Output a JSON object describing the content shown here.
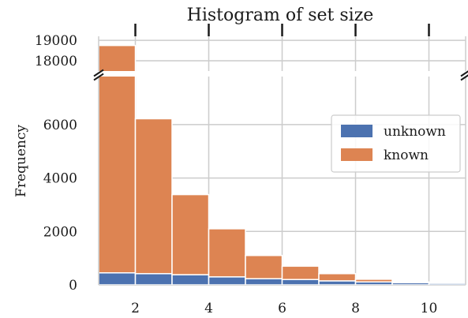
{
  "chart_data": {
    "type": "bar",
    "title": "Histogram of set size",
    "xlabel": "",
    "ylabel": "Frequency",
    "stacked": true,
    "broken_y_axis": true,
    "x_bins": [
      [
        1,
        2
      ],
      [
        2,
        3
      ],
      [
        3,
        4
      ],
      [
        4,
        5
      ],
      [
        5,
        6
      ],
      [
        6,
        7
      ],
      [
        7,
        8
      ],
      [
        8,
        9
      ],
      [
        9,
        10
      ],
      [
        10,
        11
      ]
    ],
    "xlim": [
      1,
      11
    ],
    "x_ticks": [
      2,
      4,
      6,
      8,
      10
    ],
    "ylim_lower": [
      0,
      7800
    ],
    "ylim_upper": [
      17500,
      19200
    ],
    "y_ticks_lower": [
      0,
      2000,
      4000,
      6000
    ],
    "y_ticks_upper": [
      18000,
      19000
    ],
    "grid": true,
    "legend_position": "right",
    "series": [
      {
        "name": "unknown",
        "color": "#4c72b0",
        "values": [
          450,
          420,
          380,
          300,
          230,
          200,
          150,
          110,
          80,
          60
        ]
      },
      {
        "name": "known",
        "color": "#dd8452",
        "values": [
          18300,
          5800,
          3000,
          1800,
          870,
          500,
          270,
          100,
          30,
          15
        ]
      }
    ]
  }
}
